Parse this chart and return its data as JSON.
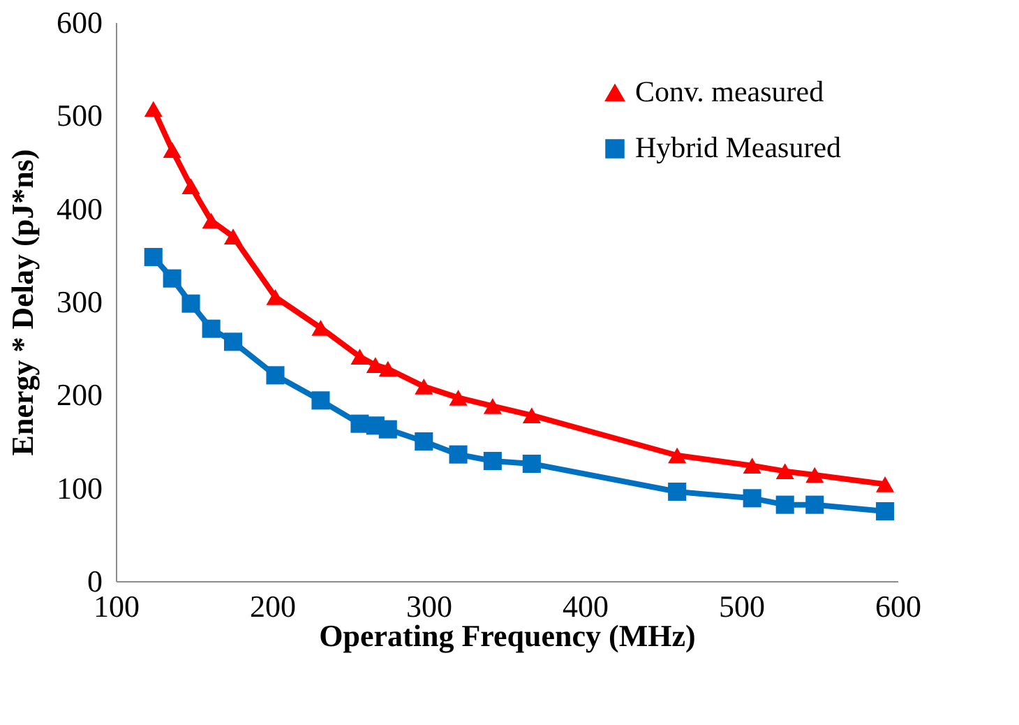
{
  "chart_data": {
    "type": "line",
    "xlabel": "Operating Frequency (MHz)",
    "ylabel": "Energy * Delay  (pJ*ns)",
    "x": [
      124,
      136,
      148,
      161,
      175,
      202,
      231,
      256,
      266,
      274,
      297,
      319,
      341,
      366,
      459,
      507,
      528,
      547,
      592
    ],
    "series": [
      {
        "name": "Conv. measured",
        "color": "#ff0000",
        "marker": "triangle",
        "values": [
          507,
          463,
          424,
          387,
          370,
          305,
          272,
          241,
          232,
          228,
          209,
          197,
          188,
          178,
          135,
          124,
          118,
          114,
          104
        ]
      },
      {
        "name": "Hybrid Measured",
        "color": "#0070c0",
        "marker": "square",
        "values": [
          348,
          325,
          298,
          271,
          257,
          221,
          194,
          169,
          167,
          163,
          150,
          136,
          129,
          126,
          96,
          89,
          82,
          82,
          75
        ]
      }
    ],
    "xlim": [
      100,
      600
    ],
    "xticks": [
      100,
      200,
      300,
      400,
      500,
      600
    ],
    "ylim": [
      0,
      600
    ],
    "yticks": [
      0,
      100,
      200,
      300,
      400,
      500,
      600
    ],
    "grid": false,
    "legend": "top right",
    "line_style": "solid"
  }
}
